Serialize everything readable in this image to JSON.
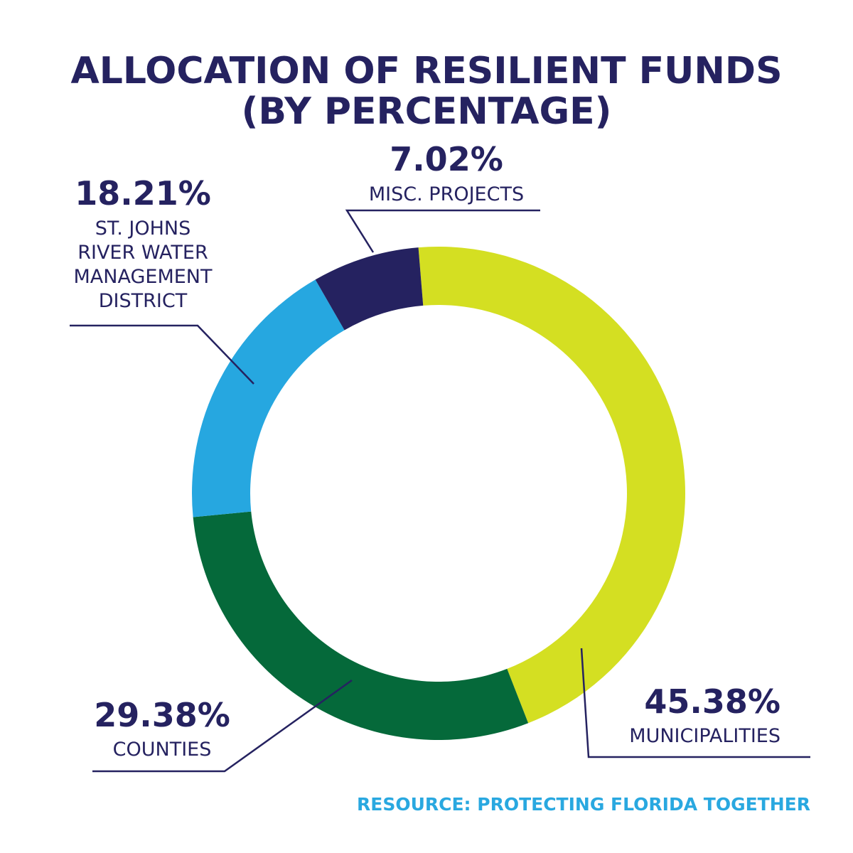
{
  "colors": {
    "text": "#252260",
    "source": "#29a8e0",
    "leader": "#252260"
  },
  "chart_data": {
    "type": "pie",
    "variant": "donut",
    "title": [
      "ALLOCATION OF RESILIENT FUNDS",
      "(BY PERCENTAGE)"
    ],
    "source": "RESOURCE: PROTECTING FLORIDA TOGETHER",
    "slices": [
      {
        "label": [
          "MUNICIPALITIES"
        ],
        "value": 45.38,
        "value_label": "45.38%",
        "color": "#d4df22"
      },
      {
        "label": [
          "COUNTIES"
        ],
        "value": 29.38,
        "value_label": "29.38%",
        "color": "#05693a"
      },
      {
        "label": [
          "ST. JOHNS",
          "RIVER WATER",
          "MANAGEMENT",
          "DISTRICT"
        ],
        "value": 18.21,
        "value_label": "18.21%",
        "color": "#26a7e0"
      },
      {
        "label": [
          "MISC. PROJECTS"
        ],
        "value": 7.02,
        "value_label": "7.02%",
        "color": "#252260"
      }
    ]
  }
}
